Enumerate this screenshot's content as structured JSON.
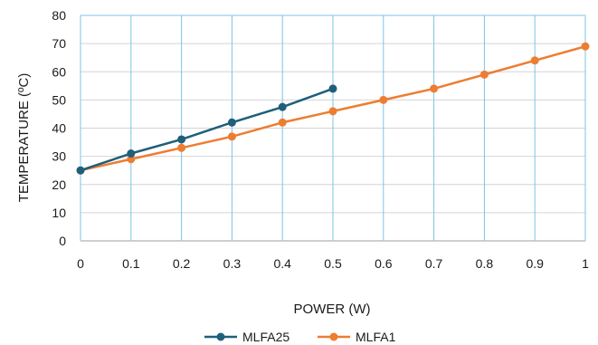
{
  "chart_data": {
    "type": "line",
    "xlabel": "POWER (W)",
    "ylabel": "TEMPERATURE (ºC)",
    "xlim": [
      0,
      1
    ],
    "ylim": [
      0,
      80
    ],
    "x_ticks": [
      "0",
      "0.1",
      "0.2",
      "0.3",
      "0.4",
      "0.5",
      "0.6",
      "0.7",
      "0.8",
      "0.9",
      "1"
    ],
    "y_ticks": [
      "0",
      "10",
      "20",
      "30",
      "40",
      "50",
      "60",
      "70",
      "80"
    ],
    "grid": {
      "vertical": true,
      "horizontal": true
    },
    "legend": "bottom-center",
    "series": [
      {
        "name": "MLFA25",
        "color": "#1f5f7a",
        "x": [
          0,
          0.1,
          0.2,
          0.3,
          0.4,
          0.5
        ],
        "y": [
          25,
          31,
          36,
          42,
          47.5,
          54
        ]
      },
      {
        "name": "MLFA1",
        "color": "#ed7d31",
        "x": [
          0,
          0.1,
          0.2,
          0.3,
          0.4,
          0.5,
          0.6,
          0.7,
          0.8,
          0.9,
          1
        ],
        "y": [
          25,
          29,
          33,
          37,
          42,
          46,
          50,
          54,
          59,
          64,
          69
        ]
      }
    ],
    "colors": {
      "vertical_grid": "#7cc3e6",
      "horizontal_grid": "#d4d4d4",
      "frame": "#7cc3e6",
      "axis_line": "#bfbfbf"
    }
  }
}
